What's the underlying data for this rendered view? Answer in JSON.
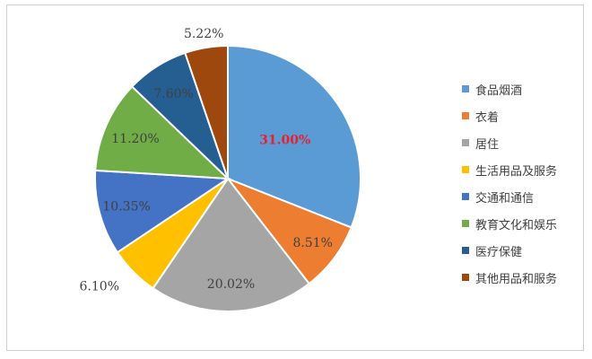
{
  "chart_data": {
    "type": "pie",
    "start_angle_deg": 0,
    "direction": "clockwise",
    "categories": [
      "食品烟酒",
      "衣着",
      "居住",
      "生活用品及服务",
      "交通和通信",
      "教育文化和娱乐",
      "医疗保健",
      "其他用品和服务"
    ],
    "values": [
      31.0,
      8.51,
      20.02,
      6.1,
      10.35,
      11.2,
      7.6,
      5.22
    ],
    "labels": [
      "31.00%",
      "8.51%",
      "20.02%",
      "6.10%",
      "10.35%",
      "11.20%",
      "7.60%",
      "5.22%"
    ],
    "colors": [
      "#5b9bd5",
      "#ed7d31",
      "#a5a5a5",
      "#ffc000",
      "#4472c4",
      "#70ad47",
      "#255e91",
      "#9e480e"
    ],
    "highlight_index": 0,
    "highlight_color": "#e8202a",
    "legend_position": "right"
  }
}
